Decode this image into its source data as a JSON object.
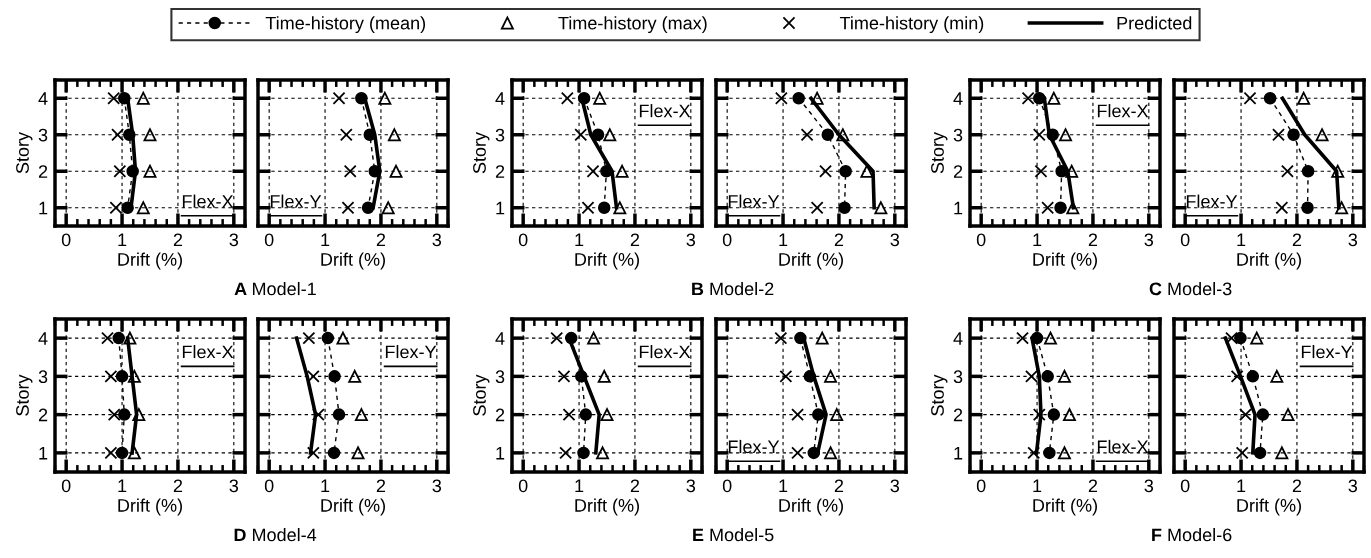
{
  "chart_data": [
    {
      "type": "line",
      "xlabel": "Drift (%)",
      "ylabel": "Story",
      "xlim": [
        -0.2,
        3.2
      ],
      "ylim": [
        0.5,
        4.5
      ],
      "xticks": [
        0,
        1,
        2,
        3
      ],
      "yticks": [
        1,
        2,
        3,
        4
      ],
      "grid": true,
      "legend": "top",
      "annotations": [
        "Flex-X",
        "A Model-1"
      ],
      "series": [
        {
          "name": "Time-history (mean)",
          "type": "line",
          "line_style": "dashed",
          "marker": "circle",
          "color": "#000000",
          "x": [
            1.04,
            1.13,
            1.19,
            1.1
          ],
          "values": [
            4,
            3,
            2,
            1
          ]
        },
        {
          "name": "Time-history (max)",
          "type": "scatter",
          "marker": "triangle",
          "color": "#000000",
          "x": [
            1.38,
            1.5,
            1.5,
            1.38
          ],
          "values": [
            4,
            3,
            2,
            1
          ]
        },
        {
          "name": "Time-history (min)",
          "type": "scatter",
          "marker": "cross",
          "color": "#000000",
          "x": [
            0.85,
            0.92,
            0.96,
            0.89
          ],
          "values": [
            4,
            3,
            2,
            1
          ]
        },
        {
          "name": "Predicted",
          "type": "line",
          "line_style": "solid",
          "color": "#000000",
          "x": [
            1.1,
            1.19,
            1.24,
            1.16
          ],
          "values": [
            4,
            3,
            2,
            1
          ]
        }
      ]
    },
    {
      "type": "line",
      "xlabel": "Drift (%)",
      "xlim": [
        -0.2,
        3.2
      ],
      "ylim": [
        0.5,
        4.5
      ],
      "xticks": [
        0,
        1,
        2,
        3
      ],
      "yticks": [
        1,
        2,
        3,
        4
      ],
      "grid": true,
      "tick_labels": "x",
      "annotations": [
        "Flex-Y"
      ],
      "series": [
        {
          "type": "line",
          "line_style": "dashed",
          "marker": "circle",
          "color": "#000000",
          "x": [
            1.65,
            1.8,
            1.89,
            1.77
          ],
          "values": [
            4,
            3,
            2,
            1
          ]
        },
        {
          "type": "scatter",
          "marker": "triangle",
          "color": "#000000",
          "x": [
            2.07,
            2.24,
            2.27,
            2.13
          ],
          "values": [
            4,
            3,
            2,
            1
          ]
        },
        {
          "type": "scatter",
          "marker": "cross",
          "color": "#000000",
          "x": [
            1.25,
            1.38,
            1.45,
            1.41
          ],
          "values": [
            4,
            3,
            2,
            1
          ]
        },
        {
          "type": "line",
          "line_style": "solid",
          "color": "#000000",
          "x": [
            1.71,
            1.89,
            1.98,
            1.86
          ],
          "values": [
            4,
            3,
            2,
            1
          ]
        }
      ]
    },
    {
      "type": "line",
      "xlabel": "Drift (%)",
      "ylabel": "Story",
      "xlim": [
        -0.2,
        3.2
      ],
      "ylim": [
        0.5,
        4.5
      ],
      "xticks": [
        0,
        1,
        2,
        3
      ],
      "yticks": [
        1,
        2,
        3,
        4
      ],
      "grid": true,
      "annotations": [
        "Flex-X",
        "B Model-2"
      ],
      "series": [
        {
          "type": "line",
          "line_style": "dashed",
          "marker": "circle",
          "color": "#000000",
          "x": [
            1.09,
            1.34,
            1.49,
            1.45
          ],
          "values": [
            4,
            3,
            2,
            1
          ]
        },
        {
          "type": "scatter",
          "marker": "triangle",
          "color": "#000000",
          "x": [
            1.37,
            1.55,
            1.77,
            1.73
          ],
          "values": [
            4,
            3,
            2,
            1
          ]
        },
        {
          "type": "scatter",
          "marker": "cross",
          "color": "#000000",
          "x": [
            0.79,
            1.03,
            1.25,
            1.16
          ],
          "values": [
            4,
            3,
            2,
            1
          ]
        },
        {
          "type": "line",
          "line_style": "solid",
          "color": "#000000",
          "x": [
            1.05,
            1.21,
            1.59,
            1.67
          ],
          "values": [
            4,
            3,
            2,
            1
          ]
        }
      ]
    },
    {
      "type": "line",
      "xlabel": "Drift (%)",
      "xlim": [
        -0.2,
        3.2
      ],
      "ylim": [
        0.5,
        4.5
      ],
      "xticks": [
        0,
        1,
        2,
        3
      ],
      "yticks": [
        1,
        2,
        3,
        4
      ],
      "grid": true,
      "tick_labels": "x",
      "annotations": [
        "Flex-Y"
      ],
      "series": [
        {
          "type": "line",
          "line_style": "dashed",
          "marker": "circle",
          "color": "#000000",
          "x": [
            1.28,
            1.8,
            2.12,
            2.1
          ],
          "values": [
            4,
            3,
            2,
            1
          ]
        },
        {
          "type": "scatter",
          "marker": "triangle",
          "color": "#000000",
          "x": [
            1.61,
            2.07,
            2.5,
            2.75
          ],
          "values": [
            4,
            3,
            2,
            1
          ]
        },
        {
          "type": "scatter",
          "marker": "cross",
          "color": "#000000",
          "x": [
            0.97,
            1.43,
            1.76,
            1.61
          ],
          "values": [
            4,
            3,
            2,
            1
          ]
        },
        {
          "type": "line",
          "line_style": "solid",
          "color": "#000000",
          "x": [
            1.5,
            2.0,
            2.61,
            2.63
          ],
          "values": [
            4,
            3,
            2,
            1
          ]
        }
      ]
    },
    {
      "type": "line",
      "xlabel": "Drift (%)",
      "ylabel": "Story",
      "xlim": [
        -0.2,
        3.2
      ],
      "ylim": [
        0.5,
        4.5
      ],
      "xticks": [
        0,
        1,
        2,
        3
      ],
      "yticks": [
        1,
        2,
        3,
        4
      ],
      "grid": true,
      "annotations": [
        "Flex-X",
        "C Model-3"
      ],
      "series": [
        {
          "type": "line",
          "line_style": "dashed",
          "marker": "circle",
          "color": "#000000",
          "x": [
            1.04,
            1.28,
            1.44,
            1.42
          ],
          "values": [
            4,
            3,
            2,
            1
          ]
        },
        {
          "type": "scatter",
          "marker": "triangle",
          "color": "#000000",
          "x": [
            1.3,
            1.51,
            1.62,
            1.64
          ],
          "values": [
            4,
            3,
            2,
            1
          ]
        },
        {
          "type": "scatter",
          "marker": "cross",
          "color": "#000000",
          "x": [
            0.84,
            1.04,
            1.07,
            1.19
          ],
          "values": [
            4,
            3,
            2,
            1
          ]
        },
        {
          "type": "line",
          "line_style": "solid",
          "color": "#000000",
          "x": [
            1.13,
            1.22,
            1.55,
            1.65
          ],
          "values": [
            4,
            3,
            2,
            1
          ]
        }
      ]
    },
    {
      "type": "line",
      "xlabel": "Drift (%)",
      "xlim": [
        -0.2,
        3.2
      ],
      "ylim": [
        0.5,
        4.5
      ],
      "xticks": [
        0,
        1,
        2,
        3
      ],
      "yticks": [
        1,
        2,
        3,
        4
      ],
      "grid": true,
      "tick_labels": "x",
      "annotations": [
        "Flex-Y"
      ],
      "series": [
        {
          "type": "line",
          "line_style": "dashed",
          "marker": "circle",
          "color": "#000000",
          "x": [
            1.52,
            1.94,
            2.2,
            2.19
          ],
          "values": [
            4,
            3,
            2,
            1
          ]
        },
        {
          "type": "scatter",
          "marker": "triangle",
          "color": "#000000",
          "x": [
            2.12,
            2.45,
            2.73,
            2.8
          ],
          "values": [
            4,
            3,
            2,
            1
          ]
        },
        {
          "type": "scatter",
          "marker": "cross",
          "color": "#000000",
          "x": [
            1.16,
            1.67,
            1.83,
            1.73
          ],
          "values": [
            4,
            3,
            2,
            1
          ]
        },
        {
          "type": "line",
          "line_style": "solid",
          "color": "#000000",
          "x": [
            1.74,
            2.14,
            2.71,
            2.75
          ],
          "values": [
            4,
            3,
            2,
            1
          ]
        }
      ]
    },
    {
      "type": "line",
      "xlabel": "Drift (%)",
      "ylabel": "Story",
      "xlim": [
        -0.2,
        3.2
      ],
      "ylim": [
        0.5,
        4.5
      ],
      "xticks": [
        0,
        1,
        2,
        3
      ],
      "yticks": [
        1,
        2,
        3,
        4
      ],
      "grid": true,
      "annotations": [
        "Flex-X",
        "D Model-4"
      ],
      "series": [
        {
          "type": "line",
          "line_style": "dashed",
          "marker": "circle",
          "color": "#000000",
          "x": [
            0.94,
            1.0,
            1.04,
            1.0
          ],
          "values": [
            4,
            3,
            2,
            1
          ]
        },
        {
          "type": "scatter",
          "marker": "triangle",
          "color": "#000000",
          "x": [
            1.14,
            1.22,
            1.3,
            1.22
          ],
          "values": [
            4,
            3,
            2,
            1
          ]
        },
        {
          "type": "scatter",
          "marker": "cross",
          "color": "#000000",
          "x": [
            0.74,
            0.8,
            0.86,
            0.8
          ],
          "values": [
            4,
            3,
            2,
            1
          ]
        },
        {
          "type": "line",
          "line_style": "solid",
          "color": "#000000",
          "x": [
            1.1,
            1.18,
            1.26,
            1.18
          ],
          "values": [
            4,
            3,
            2,
            1
          ]
        }
      ]
    },
    {
      "type": "line",
      "xlabel": "Drift (%)",
      "xlim": [
        -0.2,
        3.2
      ],
      "ylim": [
        0.5,
        4.5
      ],
      "xticks": [
        0,
        1,
        2,
        3
      ],
      "yticks": [
        1,
        2,
        3,
        4
      ],
      "grid": true,
      "tick_labels": "x",
      "annotations": [
        "Flex-Y"
      ],
      "series": [
        {
          "type": "line",
          "line_style": "dashed",
          "marker": "circle",
          "color": "#000000",
          "x": [
            1.05,
            1.17,
            1.25,
            1.16
          ],
          "values": [
            4,
            3,
            2,
            1
          ]
        },
        {
          "type": "scatter",
          "marker": "triangle",
          "color": "#000000",
          "x": [
            1.32,
            1.53,
            1.65,
            1.59
          ],
          "values": [
            4,
            3,
            2,
            1
          ]
        },
        {
          "type": "scatter",
          "marker": "cross",
          "color": "#000000",
          "x": [
            0.71,
            0.79,
            0.88,
            0.79
          ],
          "values": [
            4,
            3,
            2,
            1
          ]
        },
        {
          "type": "line",
          "line_style": "solid",
          "color": "#000000",
          "x": [
            0.49,
            0.68,
            0.83,
            0.74
          ],
          "values": [
            4,
            3,
            2,
            1
          ]
        }
      ]
    },
    {
      "type": "line",
      "xlabel": "Drift (%)",
      "ylabel": "Story",
      "xlim": [
        -0.2,
        3.2
      ],
      "ylim": [
        0.5,
        4.5
      ],
      "xticks": [
        0,
        1,
        2,
        3
      ],
      "yticks": [
        1,
        2,
        3,
        4
      ],
      "grid": true,
      "annotations": [
        "Flex-X",
        "E Model-5"
      ],
      "series": [
        {
          "type": "line",
          "line_style": "dashed",
          "marker": "circle",
          "color": "#000000",
          "x": [
            0.86,
            1.04,
            1.12,
            1.08
          ],
          "values": [
            4,
            3,
            2,
            1
          ]
        },
        {
          "type": "scatter",
          "marker": "triangle",
          "color": "#000000",
          "x": [
            1.26,
            1.45,
            1.5,
            1.42
          ],
          "values": [
            4,
            3,
            2,
            1
          ]
        },
        {
          "type": "scatter",
          "marker": "cross",
          "color": "#000000",
          "x": [
            0.6,
            0.73,
            0.82,
            0.76
          ],
          "values": [
            4,
            3,
            2,
            1
          ]
        },
        {
          "type": "line",
          "line_style": "solid",
          "color": "#000000",
          "x": [
            0.82,
            1.09,
            1.36,
            1.3
          ],
          "values": [
            4,
            3,
            2,
            1
          ]
        }
      ]
    },
    {
      "type": "line",
      "xlabel": "Drift (%)",
      "xlim": [
        -0.2,
        3.2
      ],
      "ylim": [
        0.5,
        4.5
      ],
      "xticks": [
        0,
        1,
        2,
        3
      ],
      "yticks": [
        1,
        2,
        3,
        4
      ],
      "grid": true,
      "tick_labels": "x",
      "annotations": [
        "Flex-Y"
      ],
      "series": [
        {
          "type": "line",
          "line_style": "dashed",
          "marker": "circle",
          "color": "#000000",
          "x": [
            1.31,
            1.48,
            1.63,
            1.55
          ],
          "values": [
            4,
            3,
            2,
            1
          ]
        },
        {
          "type": "scatter",
          "marker": "triangle",
          "color": "#000000",
          "x": [
            1.7,
            1.85,
            1.96,
            1.85
          ],
          "values": [
            4,
            3,
            2,
            1
          ]
        },
        {
          "type": "scatter",
          "marker": "cross",
          "color": "#000000",
          "x": [
            0.96,
            1.05,
            1.26,
            1.26
          ],
          "values": [
            4,
            3,
            2,
            1
          ]
        },
        {
          "type": "line",
          "line_style": "solid",
          "color": "#000000",
          "x": [
            1.37,
            1.55,
            1.77,
            1.62
          ],
          "values": [
            4,
            3,
            2,
            1
          ]
        }
      ]
    },
    {
      "type": "line",
      "xlabel": "Drift (%)",
      "ylabel": "Story",
      "xlim": [
        -0.2,
        3.2
      ],
      "ylim": [
        0.5,
        4.5
      ],
      "xticks": [
        0,
        1,
        2,
        3
      ],
      "yticks": [
        1,
        2,
        3,
        4
      ],
      "grid": true,
      "annotations": [
        "Flex-X",
        "F Model-6"
      ],
      "series": [
        {
          "type": "line",
          "line_style": "dashed",
          "marker": "circle",
          "color": "#000000",
          "x": [
            1.0,
            1.19,
            1.3,
            1.22
          ],
          "values": [
            4,
            3,
            2,
            1
          ]
        },
        {
          "type": "scatter",
          "marker": "triangle",
          "color": "#000000",
          "x": [
            1.24,
            1.49,
            1.58,
            1.49
          ],
          "values": [
            4,
            3,
            2,
            1
          ]
        },
        {
          "type": "scatter",
          "marker": "cross",
          "color": "#000000",
          "x": [
            0.74,
            0.9,
            1.04,
            0.94
          ],
          "values": [
            4,
            3,
            2,
            1
          ]
        },
        {
          "type": "line",
          "line_style": "solid",
          "color": "#000000",
          "x": [
            0.91,
            1.04,
            1.07,
            0.99
          ],
          "values": [
            4,
            3,
            2,
            1
          ]
        }
      ]
    },
    {
      "type": "line",
      "xlabel": "Drift (%)",
      "xlim": [
        -0.2,
        3.2
      ],
      "ylim": [
        0.5,
        4.5
      ],
      "xticks": [
        0,
        1,
        2,
        3
      ],
      "yticks": [
        1,
        2,
        3,
        4
      ],
      "grid": true,
      "tick_labels": "x",
      "annotations": [
        "Flex-Y"
      ],
      "series": [
        {
          "type": "line",
          "line_style": "dashed",
          "marker": "circle",
          "color": "#000000",
          "x": [
            0.99,
            1.21,
            1.39,
            1.34
          ],
          "values": [
            4,
            3,
            2,
            1
          ]
        },
        {
          "type": "scatter",
          "marker": "triangle",
          "color": "#000000",
          "x": [
            1.28,
            1.64,
            1.84,
            1.73
          ],
          "values": [
            4,
            3,
            2,
            1
          ]
        },
        {
          "type": "scatter",
          "marker": "cross",
          "color": "#000000",
          "x": [
            0.83,
            0.93,
            1.08,
            1.02
          ],
          "values": [
            4,
            3,
            2,
            1
          ]
        },
        {
          "type": "line",
          "line_style": "solid",
          "color": "#000000",
          "x": [
            0.72,
            0.99,
            1.25,
            1.21
          ],
          "values": [
            4,
            3,
            2,
            1
          ]
        }
      ]
    }
  ]
}
